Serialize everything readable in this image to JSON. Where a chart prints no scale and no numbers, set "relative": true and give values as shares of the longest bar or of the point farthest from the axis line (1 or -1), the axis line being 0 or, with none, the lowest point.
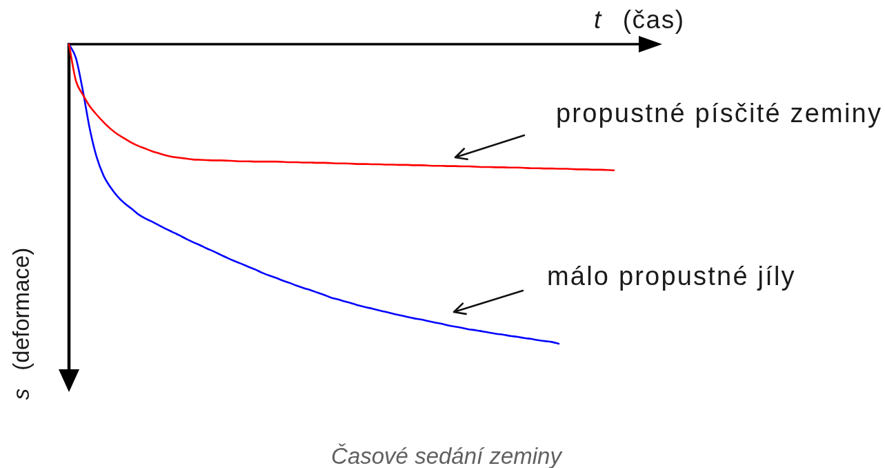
{
  "chart_data": {
    "type": "line",
    "xlabel": "t (čas)",
    "ylabel": "s (deformace)",
    "categories": [
      null,
      null,
      null,
      null,
      null,
      null,
      null,
      null,
      null,
      null,
      null,
      null,
      null,
      null,
      null,
      null,
      null,
      null,
      null,
      null,
      null,
      null,
      null,
      null,
      null,
      null,
      null,
      null,
      null,
      null,
      null,
      null,
      null,
      null,
      null,
      null,
      null,
      null,
      null,
      null,
      null,
      null,
      null,
      null,
      null,
      null,
      null,
      null,
      null,
      null,
      null,
      null,
      null,
      null,
      null,
      null,
      null,
      null,
      null,
      null,
      null,
      null,
      null,
      null,
      null,
      null,
      null,
      null,
      null,
      null,
      null,
      null,
      null,
      null,
      null,
      null,
      null,
      null,
      null,
      null
    ],
    "relative": true,
    "series": [
      {
        "name": "propustné písčité zeminy",
        "color": "#ff0000",
        "values": [
          0,
          -0.122,
          -0.168,
          -0.207,
          -0.235,
          -0.26,
          -0.282,
          -0.3,
          -0.314,
          -0.328,
          -0.339,
          -0.348,
          -0.357,
          -0.364,
          -0.371,
          -0.376,
          -0.379,
          -0.382,
          -0.385,
          -0.386,
          -0.387,
          -0.388,
          -0.388,
          -0.389,
          -0.39,
          -0.391,
          -0.391,
          -0.392,
          -0.392,
          -0.392,
          -0.392,
          -0.393,
          -0.394,
          -0.394,
          -0.395,
          -0.395,
          -0.396,
          -0.396,
          -0.397,
          -0.398,
          -0.398,
          -0.399,
          -0.4,
          -0.4,
          -0.401,
          -0.401,
          -0.402,
          -0.402,
          -0.403,
          -0.403,
          -0.404,
          -0.404,
          -0.405,
          -0.406,
          -0.406,
          -0.407,
          -0.407,
          -0.408,
          -0.408,
          -0.409,
          -0.41,
          -0.41,
          -0.411,
          -0.411,
          -0.412,
          -0.412,
          -0.413,
          -0.414,
          -0.414,
          -0.415,
          -0.415,
          -0.416,
          -0.416,
          -0.417,
          -0.418,
          -0.418,
          -0.419,
          -0.419,
          -0.42,
          -0.421
        ]
      },
      {
        "name": "málo propustné jíly",
        "color": "#0000ff",
        "values": [
          0,
          -0.046,
          -0.154,
          -0.281,
          -0.376,
          -0.438,
          -0.477,
          -0.507,
          -0.53,
          -0.548,
          -0.567,
          -0.581,
          -0.592,
          -0.604,
          -0.616,
          -0.627,
          -0.638,
          -0.65,
          -0.661,
          -0.671,
          -0.682,
          -0.692,
          -0.703,
          -0.714,
          -0.724,
          -0.733,
          -0.743,
          -0.752,
          -0.763,
          -0.772,
          -0.78,
          -0.789,
          -0.797,
          -0.806,
          -0.814,
          -0.821,
          -0.829,
          -0.837,
          -0.846,
          -0.852,
          -0.859,
          -0.865,
          -0.872,
          -0.878,
          -0.883,
          -0.889,
          -0.894,
          -0.9,
          -0.905,
          -0.91,
          -0.915,
          -0.919,
          -0.924,
          -0.929,
          -0.933,
          -0.939,
          -0.943,
          -0.947,
          -0.952,
          -0.955,
          -0.959,
          -0.963,
          -0.967,
          -0.97,
          -0.974,
          -0.977,
          -0.981,
          -0.984,
          -0.988,
          -0.991,
          -0.994,
          -1,
          null,
          null,
          null,
          null,
          null,
          null,
          null,
          null
        ]
      }
    ],
    "annotations": [
      "Časové sedání zeminy"
    ],
    "legend": false,
    "grid": false,
    "marker": "none",
    "line_style": "solid",
    "tick_labels": false
  }
}
